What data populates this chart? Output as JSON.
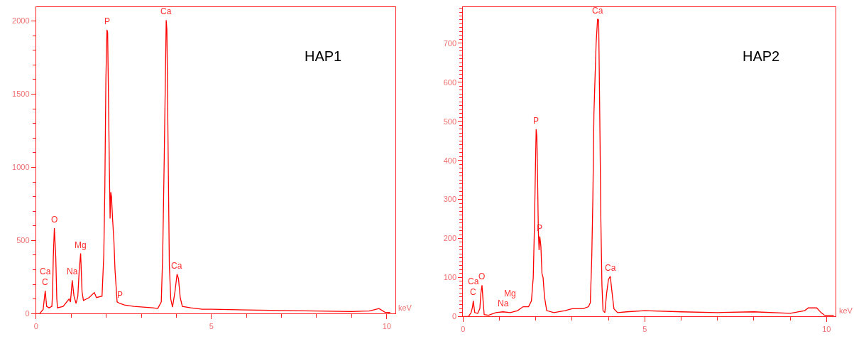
{
  "chart_data": [
    {
      "type": "line",
      "title": "HAP1",
      "xlabel": "keV",
      "x": [
        0,
        0.1,
        0.2,
        0.26,
        0.3,
        0.37,
        0.45,
        0.47,
        0.49,
        0.52,
        0.56,
        0.59,
        0.61,
        0.77,
        0.94,
        0.98,
        1.03,
        1.08,
        1.14,
        1.19,
        1.23,
        1.27,
        1.31,
        1.35,
        1.51,
        1.66,
        1.72,
        1.88,
        1.93,
        1.96,
        1.99,
        2.02,
        2.04,
        2.06,
        2.09,
        2.11,
        2.13,
        2.15,
        2.18,
        2.22,
        2.25,
        2.31,
        2.39,
        2.52,
        2.79,
        3.06,
        3.33,
        3.47,
        3.57,
        3.61,
        3.65,
        3.68,
        3.71,
        3.73,
        3.77,
        3.8,
        3.84,
        3.89,
        3.96,
        4.02,
        4.06,
        4.11,
        4.17,
        4.41,
        4.74,
        5,
        6,
        7,
        8,
        9,
        9.5,
        9.78,
        9.95,
        10.1
      ],
      "series": [
        {
          "color": "#ff0000",
          "values": [
            0,
            0,
            29,
            157,
            50,
            40,
            50,
            149,
            388,
            584,
            390,
            100,
            40,
            50,
            100,
            80,
            229,
            120,
            70,
            120,
            300,
            412,
            150,
            90,
            110,
            145,
            110,
            120,
            400,
            850,
            1600,
            1939,
            1920,
            1550,
            980,
            650,
            830,
            800,
            650,
            490,
            300,
            80,
            70,
            60,
            50,
            45,
            40,
            35,
            80,
            400,
            1000,
            1500,
            2005,
            1940,
            1000,
            330,
            100,
            45,
            150,
            270,
            240,
            110,
            50,
            40,
            30,
            30,
            25,
            22,
            18,
            15,
            18,
            35,
            10,
            8
          ]
        }
      ],
      "xlim": [
        0,
        10.24
      ],
      "ylim": [
        0,
        2095
      ],
      "xticks": [
        0,
        {
          "value": 1,
          "label": null
        },
        {
          "value": 2,
          "label": null
        },
        {
          "value": 3,
          "label": null
        },
        {
          "value": 4,
          "label": null
        },
        5,
        {
          "value": 6,
          "label": null
        },
        {
          "value": 7,
          "label": null
        },
        {
          "value": 8,
          "label": null
        },
        {
          "value": 9,
          "label": null
        },
        10
      ],
      "yticks": [
        0,
        {
          "value": 100,
          "label": null
        },
        {
          "value": 200,
          "label": null
        },
        {
          "value": 300,
          "label": null
        },
        {
          "value": 400,
          "label": null
        },
        500,
        {
          "value": 600,
          "label": null
        },
        {
          "value": 700,
          "label": null
        },
        {
          "value": 800,
          "label": null
        },
        {
          "value": 900,
          "label": null
        },
        1000,
        {
          "value": 1100,
          "label": null
        },
        {
          "value": 1200,
          "label": null
        },
        {
          "value": 1300,
          "label": null
        },
        {
          "value": 1400,
          "label": null
        },
        1500,
        {
          "value": 1600,
          "label": null
        },
        {
          "value": 1700,
          "label": null
        },
        {
          "value": 1800,
          "label": null
        },
        {
          "value": 1900,
          "label": null
        },
        2000
      ],
      "annotations": [
        {
          "text": "C",
          "x": 0.26,
          "y": 157
        },
        {
          "text": "Ca",
          "x": 0.26,
          "y": 157
        },
        {
          "text": "O",
          "x": 0.52,
          "y": 584
        },
        {
          "text": "Na",
          "x": 1.03,
          "y": 229
        },
        {
          "text": "Mg",
          "x": 1.27,
          "y": 412
        },
        {
          "text": "P",
          "x": 2.02,
          "y": 1939
        },
        {
          "text": "P",
          "x": 2.39,
          "y": 70
        },
        {
          "text": "Ca",
          "x": 3.71,
          "y": 2005
        },
        {
          "text": "Ca",
          "x": 4.02,
          "y": 270
        }
      ]
    },
    {
      "type": "line",
      "title": "HAP2",
      "xlabel": "keV",
      "x": [
        0,
        0.15,
        0.22,
        0.26,
        0.28,
        0.32,
        0.4,
        0.46,
        0.49,
        0.52,
        0.55,
        0.58,
        0.7,
        0.9,
        1.1,
        1.3,
        1.5,
        1.65,
        1.8,
        1.88,
        1.93,
        1.96,
        1.99,
        2.01,
        2.03,
        2.05,
        2.07,
        2.09,
        2.11,
        2.14,
        2.17,
        2.2,
        2.24,
        2.3,
        2.5,
        2.8,
        3.0,
        3.3,
        3.45,
        3.5,
        3.54,
        3.57,
        3.6,
        3.66,
        3.7,
        3.73,
        3.76,
        3.79,
        3.82,
        3.85,
        3.9,
        3.95,
        4.0,
        4.05,
        4.1,
        4.15,
        4.25,
        4.5,
        5,
        6,
        7,
        8,
        9,
        9.4,
        9.5,
        9.73,
        9.85,
        9.95,
        10.2
      ],
      "series": [
        {
          "color": "#ff0000",
          "values": [
            0,
            0,
            10,
            25,
            40,
            10,
            8,
            20,
            60,
            80,
            40,
            5,
            3,
            10,
            12,
            10,
            15,
            25,
            25,
            40,
            100,
            220,
            380,
            480,
            460,
            350,
            220,
            170,
            205,
            180,
            110,
            100,
            50,
            15,
            10,
            15,
            20,
            20,
            25,
            35,
            150,
            300,
            520,
            700,
            762,
            760,
            520,
            250,
            80,
            15,
            10,
            60,
            95,
            103,
            60,
            20,
            10,
            12,
            15,
            12,
            10,
            12,
            8,
            15,
            22,
            22,
            10,
            3,
            3
          ]
        }
      ],
      "xlim": [
        0,
        10.25
      ],
      "ylim": [
        0,
        793
      ],
      "xticks": [
        0,
        {
          "value": 1,
          "label": null
        },
        {
          "value": 2,
          "label": null
        },
        {
          "value": 3,
          "label": null
        },
        {
          "value": 4,
          "label": null
        },
        5,
        {
          "value": 6,
          "label": null
        },
        {
          "value": 7,
          "label": null
        },
        {
          "value": 8,
          "label": null
        },
        {
          "value": 9,
          "label": null
        },
        10
      ],
      "yticks": [
        0,
        100,
        200,
        300,
        400,
        500,
        600,
        700,
        {
          "value": 10,
          "label": null
        },
        {
          "value": 20,
          "label": null
        },
        {
          "value": 30,
          "label": null
        },
        {
          "value": 40,
          "label": null
        },
        {
          "value": 50,
          "label": null
        },
        {
          "value": 60,
          "label": null
        },
        {
          "value": 70,
          "label": null
        },
        {
          "value": 80,
          "label": null
        },
        {
          "value": 90,
          "label": null
        },
        {
          "value": 110,
          "label": null
        },
        {
          "value": 120,
          "label": null
        },
        {
          "value": 130,
          "label": null
        },
        {
          "value": 140,
          "label": null
        },
        {
          "value": 150,
          "label": null
        },
        {
          "value": 160,
          "label": null
        },
        {
          "value": 170,
          "label": null
        },
        {
          "value": 180,
          "label": null
        },
        {
          "value": 190,
          "label": null
        },
        {
          "value": 210,
          "label": null
        },
        {
          "value": 220,
          "label": null
        },
        {
          "value": 230,
          "label": null
        },
        {
          "value": 240,
          "label": null
        },
        {
          "value": 250,
          "label": null
        },
        {
          "value": 260,
          "label": null
        },
        {
          "value": 270,
          "label": null
        },
        {
          "value": 280,
          "label": null
        },
        {
          "value": 290,
          "label": null
        },
        {
          "value": 310,
          "label": null
        },
        {
          "value": 320,
          "label": null
        },
        {
          "value": 330,
          "label": null
        },
        {
          "value": 340,
          "label": null
        },
        {
          "value": 350,
          "label": null
        },
        {
          "value": 360,
          "label": null
        },
        {
          "value": 370,
          "label": null
        },
        {
          "value": 380,
          "label": null
        },
        {
          "value": 390,
          "label": null
        },
        {
          "value": 410,
          "label": null
        },
        {
          "value": 420,
          "label": null
        },
        {
          "value": 430,
          "label": null
        },
        {
          "value": 440,
          "label": null
        },
        {
          "value": 450,
          "label": null
        },
        {
          "value": 460,
          "label": null
        },
        {
          "value": 470,
          "label": null
        },
        {
          "value": 480,
          "label": null
        },
        {
          "value": 490,
          "label": null
        },
        {
          "value": 510,
          "label": null
        },
        {
          "value": 520,
          "label": null
        },
        {
          "value": 530,
          "label": null
        },
        {
          "value": 540,
          "label": null
        },
        {
          "value": 550,
          "label": null
        },
        {
          "value": 560,
          "label": null
        },
        {
          "value": 570,
          "label": null
        },
        {
          "value": 580,
          "label": null
        },
        {
          "value": 590,
          "label": null
        },
        {
          "value": 610,
          "label": null
        },
        {
          "value": 620,
          "label": null
        },
        {
          "value": 630,
          "label": null
        },
        {
          "value": 640,
          "label": null
        },
        {
          "value": 650,
          "label": null
        },
        {
          "value": 660,
          "label": null
        },
        {
          "value": 670,
          "label": null
        },
        {
          "value": 680,
          "label": null
        },
        {
          "value": 690,
          "label": null
        },
        {
          "value": 710,
          "label": null
        },
        {
          "value": 720,
          "label": null
        },
        {
          "value": 730,
          "label": null
        },
        {
          "value": 740,
          "label": null
        },
        {
          "value": 750,
          "label": null
        },
        {
          "value": 760,
          "label": null
        },
        {
          "value": 770,
          "label": null
        },
        {
          "value": 780,
          "label": null
        },
        {
          "value": 790,
          "label": null
        }
      ],
      "annotations": [
        {
          "text": "C",
          "x": 0.28,
          "y": 40
        },
        {
          "text": "Ca",
          "x": 0.28,
          "y": 40
        },
        {
          "text": "O",
          "x": 0.52,
          "y": 80
        },
        {
          "text": "Na",
          "x": 1.1,
          "y": 12
        },
        {
          "text": "Mg",
          "x": 1.3,
          "y": 10
        },
        {
          "text": "P",
          "x": 2.01,
          "y": 480
        },
        {
          "text": "P",
          "x": 2.11,
          "y": 205
        },
        {
          "text": "Ca",
          "x": 3.7,
          "y": 762
        },
        {
          "text": "Ca",
          "x": 4.05,
          "y": 103
        }
      ]
    }
  ]
}
